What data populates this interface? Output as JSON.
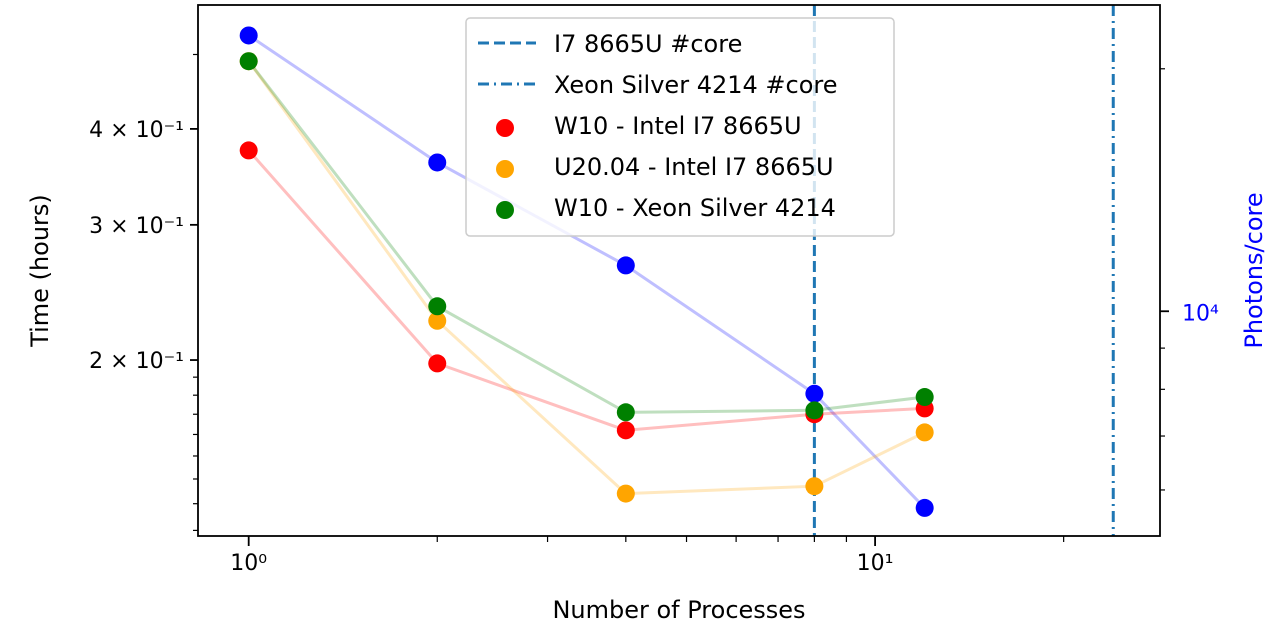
{
  "chart_data": {
    "type": "scatter",
    "xlabel": "Number of Processes",
    "ylabel": "Time (hours)",
    "y2label": "Photons/core",
    "xscale": "log",
    "yscale": "log",
    "y2scale": "log",
    "xlim": [
      0.83,
      28.5
    ],
    "ylim": [
      0.118,
      0.58
    ],
    "y2lim": [
      5260,
      24000
    ],
    "x_ticks": [
      {
        "value": 1,
        "label": "10⁰"
      },
      {
        "value": 10,
        "label": "10¹"
      }
    ],
    "y_ticks": [
      {
        "value": 0.2,
        "label": "2 × 10⁻¹"
      },
      {
        "value": 0.3,
        "label": "3 × 10⁻¹"
      },
      {
        "value": 0.4,
        "label": "4 × 10⁻¹"
      }
    ],
    "y2_ticks": [
      {
        "value": 10000,
        "label": "10⁴"
      }
    ],
    "grid": false,
    "legend_position": "upper center",
    "vlines": [
      {
        "name": "I7 8665U #core",
        "x": 8,
        "style": "dashed",
        "color": "#1f77b4"
      },
      {
        "name": "Xeon Silver 4214 #core",
        "x": 24,
        "style": "dashdot",
        "color": "#1f77b4"
      }
    ],
    "series": [
      {
        "name": "W10 - Intel I7 8665U",
        "color": "#ff0000",
        "axis": "left",
        "x": [
          1,
          2,
          4,
          8,
          12
        ],
        "y": [
          0.375,
          0.198,
          0.162,
          0.17,
          0.173
        ]
      },
      {
        "name": "U20.04 - Intel I7 8665U",
        "color": "#ffa500",
        "axis": "left",
        "x": [
          1,
          2,
          4,
          8,
          12
        ],
        "y": [
          0.49,
          0.225,
          0.134,
          0.137,
          0.161
        ]
      },
      {
        "name": "W10 - Xeon Silver 4214",
        "color": "#008000",
        "axis": "left",
        "x": [
          1,
          2,
          4,
          8,
          12
        ],
        "y": [
          0.49,
          0.235,
          0.171,
          0.172,
          0.179
        ]
      },
      {
        "name": "",
        "color": "#0000ff",
        "axis": "right",
        "x": [
          1,
          2,
          4,
          8,
          12
        ],
        "y": [
          22000,
          15300,
          11400,
          7900,
          5700
        ]
      }
    ]
  }
}
